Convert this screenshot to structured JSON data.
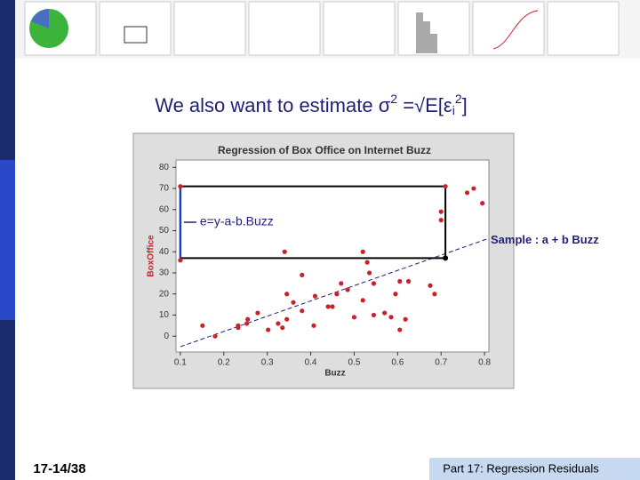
{
  "slide": {
    "title": [
      "We also want to estimate ",
      "σ",
      "2",
      " =√E[ε",
      "i",
      "2",
      "]"
    ],
    "page_number": "17-14/38",
    "footer": "Part 17: Regression Residuals"
  },
  "chart_data": {
    "type": "scatter",
    "title": "Regression of Box Office on Internet Buzz",
    "x_label": "Buzz",
    "y_label": "BoxOffice",
    "color": "#c8232c",
    "xlim": [
      0.09,
      0.81
    ],
    "ylim": [
      -7.5,
      83.5
    ],
    "xticks": [
      0.1,
      0.2,
      0.3,
      0.4,
      0.5,
      0.6,
      0.7,
      0.8
    ],
    "yticks": [
      0,
      10,
      20,
      30,
      40,
      50,
      60,
      70,
      80
    ],
    "x": [
      0.1,
      0.1,
      0.151,
      0.18,
      0.233,
      0.233,
      0.253,
      0.255,
      0.278,
      0.302,
      0.325,
      0.335,
      0.345,
      0.345,
      0.34,
      0.36,
      0.38,
      0.38,
      0.407,
      0.41,
      0.44,
      0.45,
      0.46,
      0.47,
      0.485,
      0.5,
      0.52,
      0.52,
      0.53,
      0.535,
      0.545,
      0.545,
      0.57,
      0.585,
      0.595,
      0.605,
      0.605,
      0.618,
      0.625,
      0.675,
      0.685,
      0.7,
      0.7,
      0.71,
      0.76,
      0.775,
      0.795
    ],
    "values": [
      71,
      36,
      5,
      0,
      4,
      5,
      6,
      8,
      11,
      3,
      6,
      4,
      8,
      20,
      40,
      16,
      29,
      12,
      5,
      19,
      14,
      14,
      20,
      25,
      22,
      9,
      17,
      40,
      35,
      30,
      25,
      10,
      11,
      9,
      20,
      3,
      26,
      8,
      26,
      24,
      20,
      59,
      55,
      71,
      68,
      70,
      63
    ],
    "fit_line": {
      "x": [
        0.1,
        0.805
      ],
      "y": [
        -5,
        46
      ]
    },
    "fitted_point": {
      "x": 0.71,
      "y": 37
    },
    "residual_box": {
      "x": [
        0.1,
        0.71
      ],
      "y": [
        37,
        71
      ]
    },
    "annotation": "e=y-a-b.Buzz",
    "fit_label": "Sample : a + b  Buzz"
  }
}
